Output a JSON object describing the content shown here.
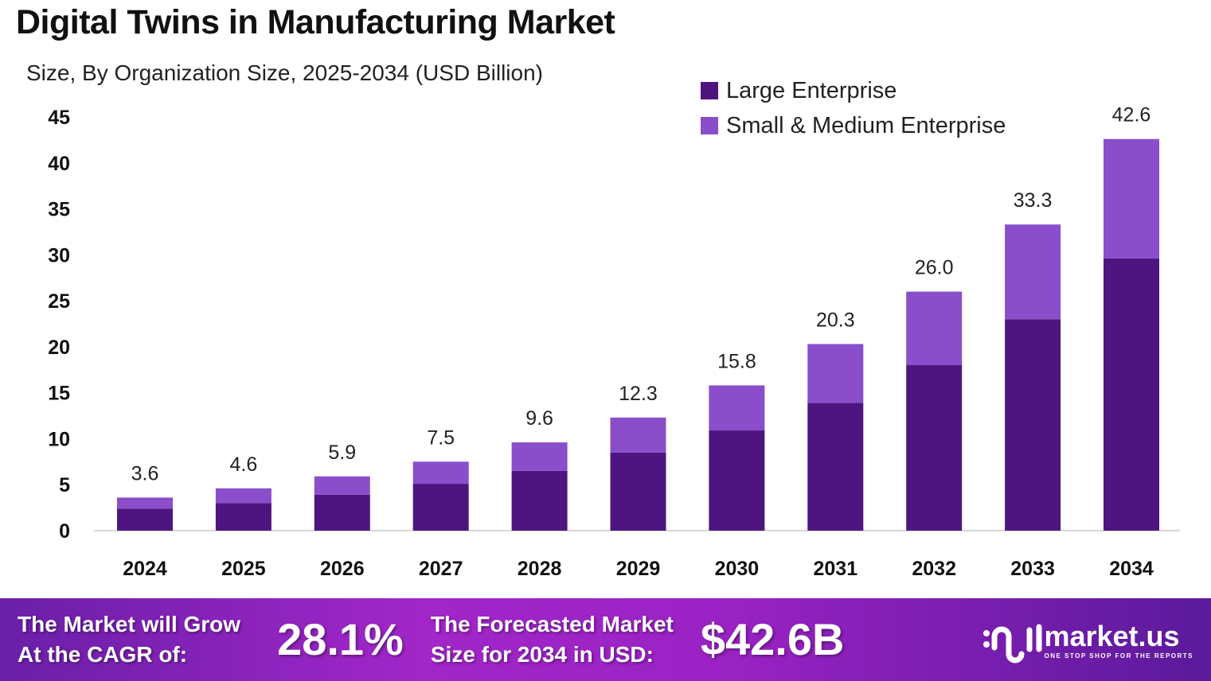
{
  "chart_data": {
    "type": "bar",
    "stacked": true,
    "title": "Digital Twins in Manufacturing Market",
    "subtitle": "Size, By Organization Size, 2025-2034 (USD Billion)",
    "categories": [
      "2024",
      "2025",
      "2026",
      "2027",
      "2028",
      "2029",
      "2030",
      "2031",
      "2032",
      "2033",
      "2034"
    ],
    "series": [
      {
        "name": "Large Enterprise",
        "color": "#4E1580",
        "values": [
          2.4,
          3.0,
          3.9,
          5.1,
          6.5,
          8.5,
          10.9,
          13.9,
          18.0,
          23.0,
          29.6
        ]
      },
      {
        "name": "Small & Medium Enterprise",
        "color": "#8A4ECB",
        "values": [
          1.2,
          1.6,
          2.0,
          2.4,
          3.1,
          3.8,
          4.9,
          6.4,
          8.0,
          10.3,
          13.0
        ]
      }
    ],
    "totals": [
      "3.6",
      "4.6",
      "5.9",
      "7.5",
      "9.6",
      "12.3",
      "15.8",
      "20.3",
      "26.0",
      "33.3",
      "42.6"
    ],
    "ylim": [
      0,
      45
    ],
    "yticks": [
      "0",
      "5",
      "10",
      "15",
      "20",
      "25",
      "30",
      "35",
      "40",
      "45"
    ],
    "grid": false,
    "legend_position": "top-right"
  },
  "footer": {
    "cagr_text_1": "The Market will Grow",
    "cagr_text_2": "At the CAGR of:",
    "cagr_value": "28.1%",
    "forecast_text_1": "The Forecasted Market",
    "forecast_text_2": "Size for 2034 in USD:",
    "forecast_value": "$42.6B",
    "logo_name": "market.us",
    "logo_tagline": "ONE STOP SHOP FOR THE REPORTS"
  }
}
